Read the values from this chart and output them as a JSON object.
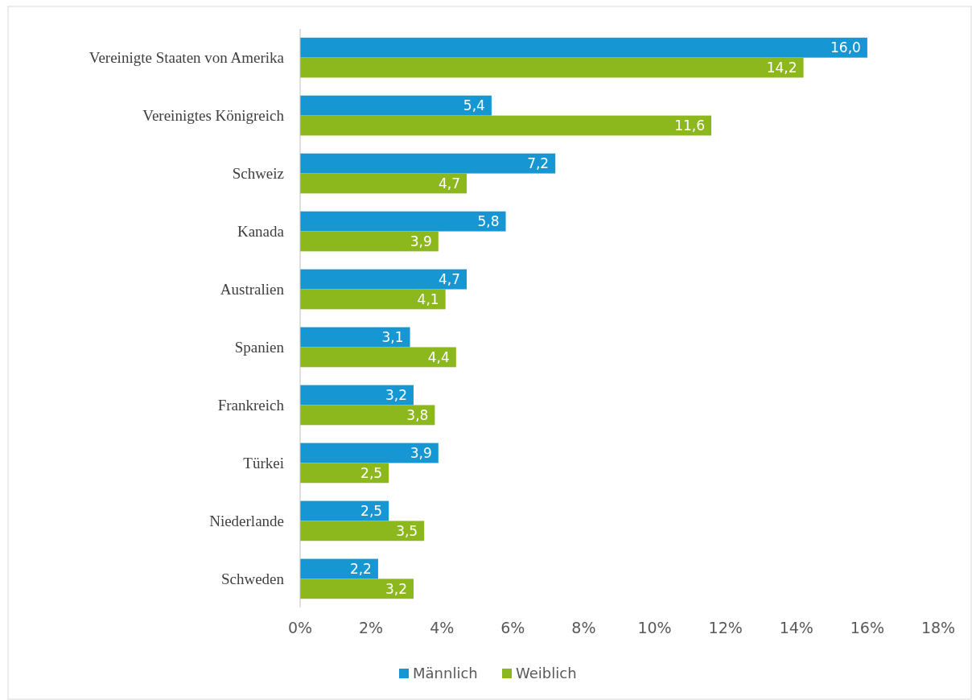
{
  "chart_data": {
    "type": "bar",
    "orientation": "horizontal",
    "categories": [
      "Vereinigte Staaten von Amerika",
      "Vereinigtes Königreich",
      "Schweiz",
      "Kanada",
      "Australien",
      "Spanien",
      "Frankreich",
      "Türkei",
      "Niederlande",
      "Schweden"
    ],
    "series": [
      {
        "name": "Männlich",
        "color": "#1696d2",
        "values": [
          16.0,
          5.4,
          7.2,
          5.8,
          4.7,
          3.1,
          3.2,
          3.9,
          2.5,
          2.2
        ],
        "value_labels": [
          "16,0",
          "5,4",
          "7,2",
          "5,8",
          "4,7",
          "3,1",
          "3,2",
          "3,9",
          "2,5",
          "2,2"
        ]
      },
      {
        "name": "Weiblich",
        "color": "#8cb81e",
        "values": [
          14.2,
          11.6,
          4.7,
          3.9,
          4.1,
          4.4,
          3.8,
          2.5,
          3.5,
          3.2
        ],
        "value_labels": [
          "14,2",
          "11,6",
          "4,7",
          "3,9",
          "4,1",
          "4,4",
          "3,8",
          "2,5",
          "3,5",
          "3,2"
        ]
      }
    ],
    "xlim": [
      0,
      18
    ],
    "xticks": [
      {
        "value": 0,
        "label": "0%"
      },
      {
        "value": 2,
        "label": "2%"
      },
      {
        "value": 4,
        "label": "4%"
      },
      {
        "value": 6,
        "label": "6%"
      },
      {
        "value": 8,
        "label": "8%"
      },
      {
        "value": 10,
        "label": "10%"
      },
      {
        "value": 12,
        "label": "12%"
      },
      {
        "value": 14,
        "label": "14%"
      },
      {
        "value": 16,
        "label": "16%"
      },
      {
        "value": 18,
        "label": "18%"
      }
    ],
    "grid": false,
    "legend": "bottom"
  }
}
